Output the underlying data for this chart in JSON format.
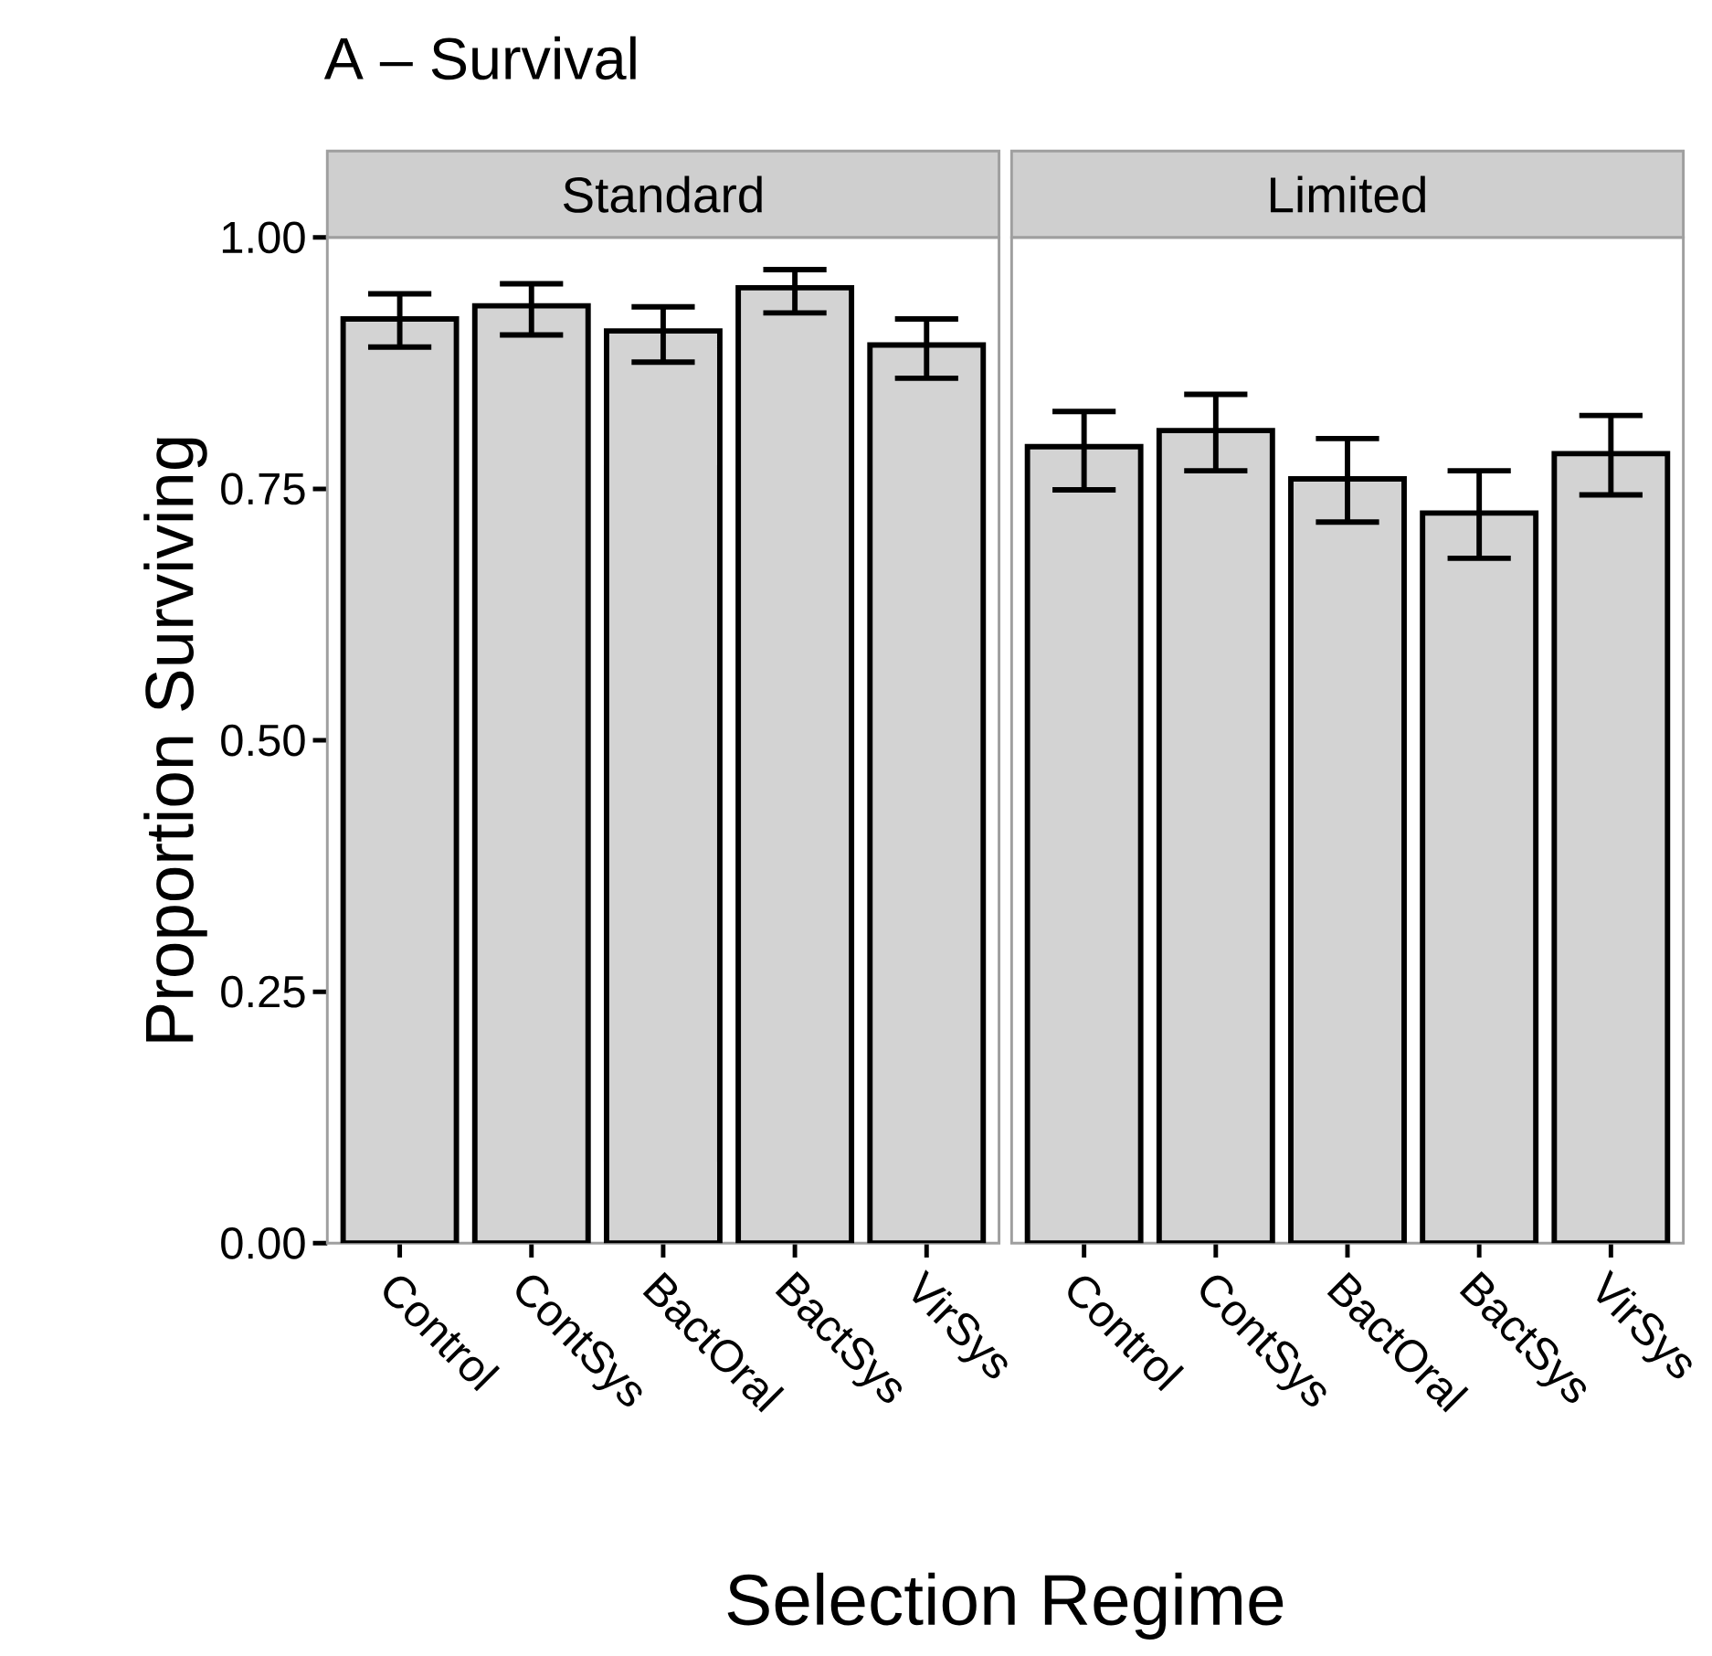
{
  "chart_data": [
    {
      "type": "bar",
      "title": "A – Survival",
      "subtitle": "Standard",
      "xlabel": "Selection Regime",
      "ylabel": "Proportion Surviving",
      "categories": [
        "Control",
        "ContSys",
        "BactOral",
        "BactSys",
        "VirSys"
      ],
      "values": [
        0.919,
        0.932,
        0.907,
        0.95,
        0.893
      ],
      "color": "#d3d3d3",
      "errors": [
        [
          0.891,
          0.944
        ],
        [
          0.903,
          0.954
        ],
        [
          0.876,
          0.931
        ],
        [
          0.925,
          0.968
        ],
        [
          0.86,
          0.919
        ]
      ],
      "ylim": [
        0,
        1
      ],
      "yticks": [
        {
          "value": 0,
          "label": "0.00"
        },
        {
          "value": 0.25,
          "label": "0.25"
        },
        {
          "value": 0.5,
          "label": "0.50"
        },
        {
          "value": 0.75,
          "label": "0.75"
        },
        {
          "value": 1,
          "label": "1.00"
        }
      ]
    },
    {
      "type": "bar",
      "subtitle": "Limited",
      "categories": [
        "Control",
        "ContSys",
        "BactOral",
        "BactSys",
        "VirSys"
      ],
      "values": [
        0.792,
        0.808,
        0.76,
        0.726,
        0.785
      ],
      "color": "#d3d3d3",
      "errors": [
        [
          0.749,
          0.827
        ],
        [
          0.768,
          0.844
        ],
        [
          0.717,
          0.8
        ],
        [
          0.681,
          0.768
        ],
        [
          0.744,
          0.823
        ]
      ],
      "ylim": [
        0,
        1
      ],
      "tick_labels": "x"
    }
  ]
}
